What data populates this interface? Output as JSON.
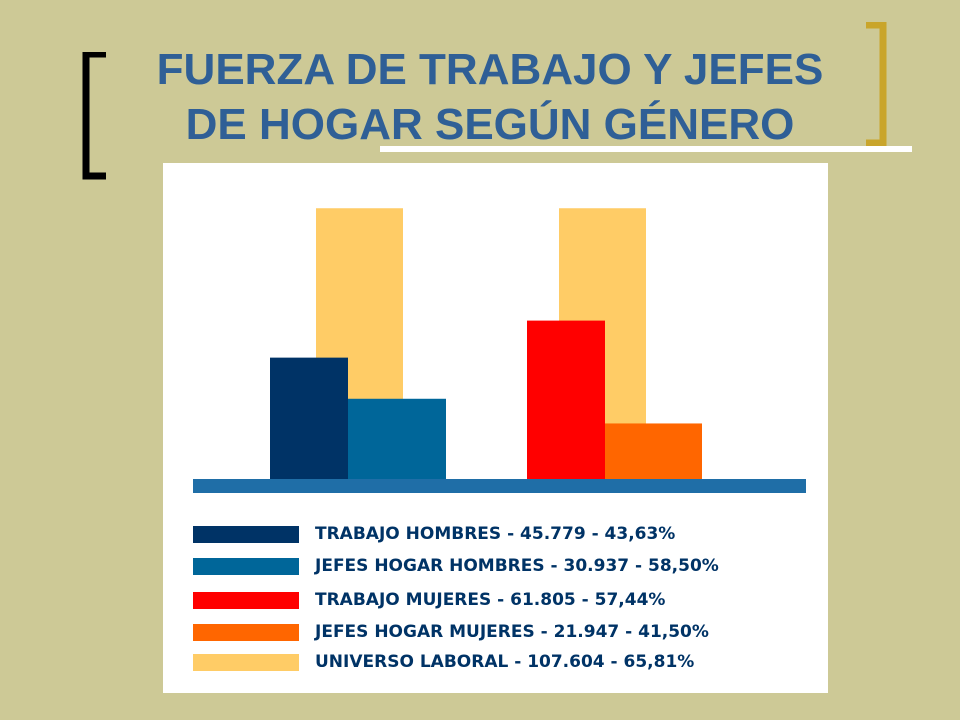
{
  "colors": {
    "background": "#CDC996",
    "panel": "#FFFFFF",
    "title": "#2F5F96",
    "bracket_left": "#000000",
    "bracket_right": "#C9A52B",
    "baseline": "#1F6EA7",
    "text_dark": "#003366"
  },
  "slide": {
    "title_line1": "FUERZA DE TRABAJO Y JEFES",
    "title_line2": "DE HOGAR SEGÚN GÉNERO"
  },
  "chart_data": {
    "type": "bar",
    "title": "",
    "xlabel": "",
    "ylabel": "",
    "ylim": [
      0,
      70
    ],
    "grid": false,
    "legend_position": "bottom",
    "unit": "%",
    "groups": [
      {
        "bars": [
          {
            "series": "UNIVERSO LABORAL",
            "value": 65.81,
            "color": "#FFCC66",
            "layer": "back"
          },
          {
            "series": "TRABAJO HOMBRES",
            "value": 29.5,
            "color": "#003366",
            "layer": "front"
          },
          {
            "series": "JEFES HOGAR HOMBRES",
            "value": 19.5,
            "color": "#006699",
            "layer": "front"
          }
        ]
      },
      {
        "bars": [
          {
            "series": "UNIVERSO LABORAL",
            "value": 65.81,
            "color": "#FFCC66",
            "layer": "back"
          },
          {
            "series": "TRABAJO MUJERES",
            "value": 38.5,
            "color": "#FF0000",
            "layer": "front"
          },
          {
            "series": "JEFES HOGAR MUJERES",
            "value": 13.5,
            "color": "#FF6600",
            "layer": "front"
          }
        ]
      }
    ],
    "legend": [
      {
        "label": "TRABAJO HOMBRES - 45.779 - 43,63%",
        "color": "#003366"
      },
      {
        "label": "JEFES HOGAR HOMBRES - 30.937 - 58,50%",
        "color": "#006699"
      },
      {
        "label": "TRABAJO MUJERES - 61.805 - 57,44%",
        "color": "#FF0000"
      },
      {
        "label": "JEFES HOGAR MUJERES - 21.947 - 41,50%",
        "color": "#FF6600"
      },
      {
        "label": "UNIVERSO LABORAL  - 107.604 - 65,81%",
        "color": "#FFCC66"
      }
    ]
  }
}
